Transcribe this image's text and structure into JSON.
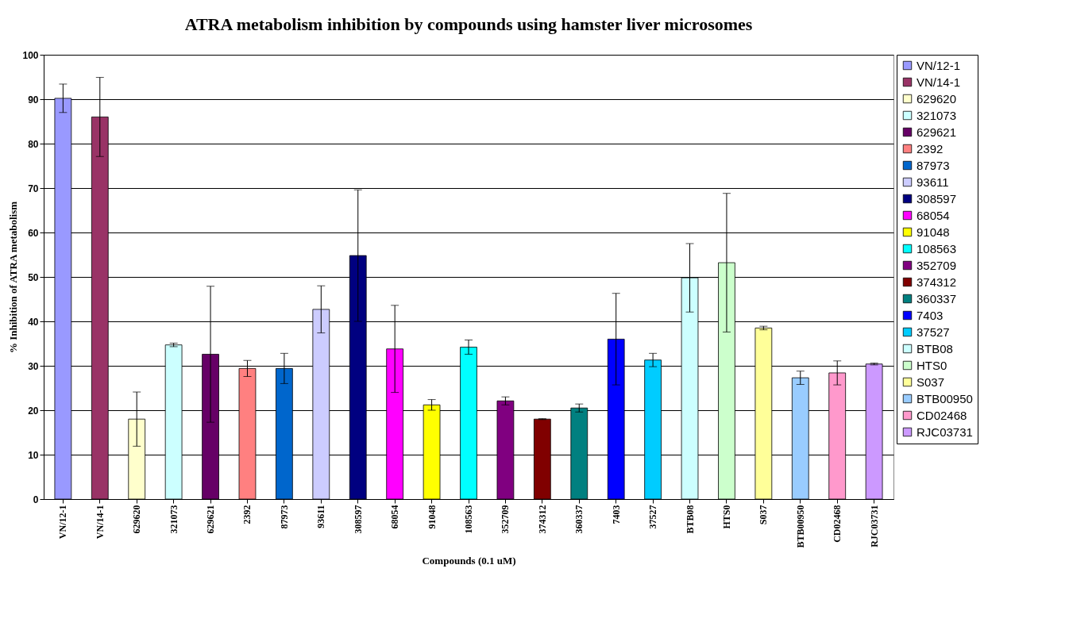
{
  "chart_data": {
    "type": "bar",
    "title": "ATRA metabolism inhibition by compounds using hamster liver microsomes",
    "xlabel": "Compounds (0.1 uM)",
    "ylabel": "% Inhibition of ATRA metabolism",
    "categories": [
      "VN/12-1",
      "VN/14-1",
      "629620",
      "321073",
      "629621",
      "2392",
      "87973",
      "93611",
      "308597",
      "68054",
      "91048",
      "108563",
      "352709",
      "374312",
      "360337",
      "7403",
      "37527",
      "BTB08",
      "HTS0",
      "S037",
      "BTB00950",
      "CD02468",
      "RJC03731"
    ],
    "series": [
      {
        "name": "VN/12-1",
        "color": "#9999ff",
        "values": [
          90.2,
          null,
          null,
          null,
          null,
          null,
          null,
          null,
          null,
          null,
          null,
          null,
          null,
          null,
          null,
          null,
          null,
          null,
          null,
          null,
          null,
          null,
          null
        ],
        "errors": [
          3.2,
          null,
          null,
          null,
          null,
          null,
          null,
          null,
          null,
          null,
          null,
          null,
          null,
          null,
          null,
          null,
          null,
          null,
          null,
          null,
          null,
          null,
          null
        ]
      },
      {
        "name": "VN/14-1",
        "color": "#993366",
        "values": [
          null,
          86,
          null,
          null,
          null,
          null,
          null,
          null,
          null,
          null,
          null,
          null,
          null,
          null,
          null,
          null,
          null,
          null,
          null,
          null,
          null,
          null,
          null
        ],
        "errors": [
          null,
          8.9,
          null,
          null,
          null,
          null,
          null,
          null,
          null,
          null,
          null,
          null,
          null,
          null,
          null,
          null,
          null,
          null,
          null,
          null,
          null,
          null,
          null
        ]
      },
      {
        "name": "629620",
        "color": "#ffffcc",
        "values": [
          null,
          null,
          18,
          null,
          null,
          null,
          null,
          null,
          null,
          null,
          null,
          null,
          null,
          null,
          null,
          null,
          null,
          null,
          null,
          null,
          null,
          null,
          null
        ],
        "errors": [
          null,
          null,
          6.1,
          null,
          null,
          null,
          null,
          null,
          null,
          null,
          null,
          null,
          null,
          null,
          null,
          null,
          null,
          null,
          null,
          null,
          null,
          null,
          null
        ]
      },
      {
        "name": "321073",
        "color": "#ccffff",
        "values": [
          null,
          null,
          null,
          34.7,
          null,
          null,
          null,
          null,
          null,
          null,
          null,
          null,
          null,
          null,
          null,
          null,
          null,
          null,
          null,
          null,
          null,
          null,
          null
        ],
        "errors": [
          null,
          null,
          null,
          0.4,
          null,
          null,
          null,
          null,
          null,
          null,
          null,
          null,
          null,
          null,
          null,
          null,
          null,
          null,
          null,
          null,
          null,
          null,
          null
        ]
      },
      {
        "name": "629621",
        "color": "#660066",
        "values": [
          null,
          null,
          null,
          null,
          32.6,
          null,
          null,
          null,
          null,
          null,
          null,
          null,
          null,
          null,
          null,
          null,
          null,
          null,
          null,
          null,
          null,
          null,
          null
        ],
        "errors": [
          null,
          null,
          null,
          null,
          15.3,
          null,
          null,
          null,
          null,
          null,
          null,
          null,
          null,
          null,
          null,
          null,
          null,
          null,
          null,
          null,
          null,
          null,
          null
        ]
      },
      {
        "name": "2392",
        "color": "#ff8080",
        "values": [
          null,
          null,
          null,
          null,
          null,
          29.4,
          null,
          null,
          null,
          null,
          null,
          null,
          null,
          null,
          null,
          null,
          null,
          null,
          null,
          null,
          null,
          null,
          null
        ],
        "errors": [
          null,
          null,
          null,
          null,
          null,
          1.8,
          null,
          null,
          null,
          null,
          null,
          null,
          null,
          null,
          null,
          null,
          null,
          null,
          null,
          null,
          null,
          null,
          null
        ]
      },
      {
        "name": "87973",
        "color": "#0066cc",
        "values": [
          null,
          null,
          null,
          null,
          null,
          null,
          29.4,
          null,
          null,
          null,
          null,
          null,
          null,
          null,
          null,
          null,
          null,
          null,
          null,
          null,
          null,
          null,
          null
        ],
        "errors": [
          null,
          null,
          null,
          null,
          null,
          null,
          3.4,
          null,
          null,
          null,
          null,
          null,
          null,
          null,
          null,
          null,
          null,
          null,
          null,
          null,
          null,
          null,
          null
        ]
      },
      {
        "name": "93611",
        "color": "#ccccff",
        "values": [
          null,
          null,
          null,
          null,
          null,
          null,
          null,
          42.7,
          null,
          null,
          null,
          null,
          null,
          null,
          null,
          null,
          null,
          null,
          null,
          null,
          null,
          null,
          null
        ],
        "errors": [
          null,
          null,
          null,
          null,
          null,
          null,
          null,
          5.3,
          null,
          null,
          null,
          null,
          null,
          null,
          null,
          null,
          null,
          null,
          null,
          null,
          null,
          null,
          null
        ]
      },
      {
        "name": "308597",
        "color": "#000080",
        "values": [
          null,
          null,
          null,
          null,
          null,
          null,
          null,
          null,
          54.8,
          null,
          null,
          null,
          null,
          null,
          null,
          null,
          null,
          null,
          null,
          null,
          null,
          null,
          null
        ],
        "errors": [
          null,
          null,
          null,
          null,
          null,
          null,
          null,
          null,
          14.8,
          null,
          null,
          null,
          null,
          null,
          null,
          null,
          null,
          null,
          null,
          null,
          null,
          null,
          null
        ]
      },
      {
        "name": "68054",
        "color": "#ff00ff",
        "values": [
          null,
          null,
          null,
          null,
          null,
          null,
          null,
          null,
          null,
          33.8,
          null,
          null,
          null,
          null,
          null,
          null,
          null,
          null,
          null,
          null,
          null,
          null,
          null
        ],
        "errors": [
          null,
          null,
          null,
          null,
          null,
          null,
          null,
          null,
          null,
          9.8,
          null,
          null,
          null,
          null,
          null,
          null,
          null,
          null,
          null,
          null,
          null,
          null,
          null
        ]
      },
      {
        "name": "91048",
        "color": "#ffff00",
        "values": [
          null,
          null,
          null,
          null,
          null,
          null,
          null,
          null,
          null,
          null,
          21.2,
          null,
          null,
          null,
          null,
          null,
          null,
          null,
          null,
          null,
          null,
          null,
          null
        ],
        "errors": [
          null,
          null,
          null,
          null,
          null,
          null,
          null,
          null,
          null,
          null,
          1.2,
          null,
          null,
          null,
          null,
          null,
          null,
          null,
          null,
          null,
          null,
          null,
          null
        ]
      },
      {
        "name": "108563",
        "color": "#00ffff",
        "values": [
          null,
          null,
          null,
          null,
          null,
          null,
          null,
          null,
          null,
          null,
          null,
          34.2,
          null,
          null,
          null,
          null,
          null,
          null,
          null,
          null,
          null,
          null,
          null
        ],
        "errors": [
          null,
          null,
          null,
          null,
          null,
          null,
          null,
          null,
          null,
          null,
          null,
          1.6,
          null,
          null,
          null,
          null,
          null,
          null,
          null,
          null,
          null,
          null,
          null
        ]
      },
      {
        "name": "352709",
        "color": "#800080",
        "values": [
          null,
          null,
          null,
          null,
          null,
          null,
          null,
          null,
          null,
          null,
          null,
          null,
          22.1,
          null,
          null,
          null,
          null,
          null,
          null,
          null,
          null,
          null,
          null
        ],
        "errors": [
          null,
          null,
          null,
          null,
          null,
          null,
          null,
          null,
          null,
          null,
          null,
          null,
          0.9,
          null,
          null,
          null,
          null,
          null,
          null,
          null,
          null,
          null,
          null
        ]
      },
      {
        "name": "374312",
        "color": "#800000",
        "values": [
          null,
          null,
          null,
          null,
          null,
          null,
          null,
          null,
          null,
          null,
          null,
          null,
          null,
          18,
          null,
          null,
          null,
          null,
          null,
          null,
          null,
          null,
          null
        ],
        "errors": [
          null,
          null,
          null,
          null,
          null,
          null,
          null,
          null,
          null,
          null,
          null,
          null,
          null,
          0.1,
          null,
          null,
          null,
          null,
          null,
          null,
          null,
          null,
          null
        ]
      },
      {
        "name": "360337",
        "color": "#008080",
        "values": [
          null,
          null,
          null,
          null,
          null,
          null,
          null,
          null,
          null,
          null,
          null,
          null,
          null,
          null,
          20.5,
          null,
          null,
          null,
          null,
          null,
          null,
          null,
          null
        ],
        "errors": [
          null,
          null,
          null,
          null,
          null,
          null,
          null,
          null,
          null,
          null,
          null,
          null,
          null,
          null,
          0.9,
          null,
          null,
          null,
          null,
          null,
          null,
          null,
          null
        ]
      },
      {
        "name": "7403",
        "color": "#0000ff",
        "values": [
          null,
          null,
          null,
          null,
          null,
          null,
          null,
          null,
          null,
          null,
          null,
          null,
          null,
          null,
          null,
          36,
          null,
          null,
          null,
          null,
          null,
          null,
          null
        ],
        "errors": [
          null,
          null,
          null,
          null,
          null,
          null,
          null,
          null,
          null,
          null,
          null,
          null,
          null,
          null,
          null,
          10.3,
          null,
          null,
          null,
          null,
          null,
          null,
          null
        ]
      },
      {
        "name": "37527",
        "color": "#00ccff",
        "values": [
          null,
          null,
          null,
          null,
          null,
          null,
          null,
          null,
          null,
          null,
          null,
          null,
          null,
          null,
          null,
          null,
          31.3,
          null,
          null,
          null,
          null,
          null,
          null
        ],
        "errors": [
          null,
          null,
          null,
          null,
          null,
          null,
          null,
          null,
          null,
          null,
          null,
          null,
          null,
          null,
          null,
          null,
          1.5,
          null,
          null,
          null,
          null,
          null,
          null
        ]
      },
      {
        "name": "BTB08",
        "color": "#ccffff",
        "values": [
          null,
          null,
          null,
          null,
          null,
          null,
          null,
          null,
          null,
          null,
          null,
          null,
          null,
          null,
          null,
          null,
          null,
          49.8,
          null,
          null,
          null,
          null,
          null
        ],
        "errors": [
          null,
          null,
          null,
          null,
          null,
          null,
          null,
          null,
          null,
          null,
          null,
          null,
          null,
          null,
          null,
          null,
          null,
          7.7,
          null,
          null,
          null,
          null,
          null
        ]
      },
      {
        "name": "HTS0",
        "color": "#ccffcc",
        "values": [
          null,
          null,
          null,
          null,
          null,
          null,
          null,
          null,
          null,
          null,
          null,
          null,
          null,
          null,
          null,
          null,
          null,
          null,
          53.2,
          null,
          null,
          null,
          null
        ],
        "errors": [
          null,
          null,
          null,
          null,
          null,
          null,
          null,
          null,
          null,
          null,
          null,
          null,
          null,
          null,
          null,
          null,
          null,
          null,
          15.6,
          null,
          null,
          null,
          null
        ]
      },
      {
        "name": "S037",
        "color": "#ffff99",
        "values": [
          null,
          null,
          null,
          null,
          null,
          null,
          null,
          null,
          null,
          null,
          null,
          null,
          null,
          null,
          null,
          null,
          null,
          null,
          null,
          38.5,
          null,
          null,
          null
        ],
        "errors": [
          null,
          null,
          null,
          null,
          null,
          null,
          null,
          null,
          null,
          null,
          null,
          null,
          null,
          null,
          null,
          null,
          null,
          null,
          null,
          0.4,
          null,
          null,
          null
        ]
      },
      {
        "name": "BTB00950",
        "color": "#99ccff",
        "values": [
          null,
          null,
          null,
          null,
          null,
          null,
          null,
          null,
          null,
          null,
          null,
          null,
          null,
          null,
          null,
          null,
          null,
          null,
          null,
          null,
          27.3,
          null,
          null
        ],
        "errors": [
          null,
          null,
          null,
          null,
          null,
          null,
          null,
          null,
          null,
          null,
          null,
          null,
          null,
          null,
          null,
          null,
          null,
          null,
          null,
          null,
          1.5,
          null,
          null
        ]
      },
      {
        "name": "CD02468",
        "color": "#ff99cc",
        "values": [
          null,
          null,
          null,
          null,
          null,
          null,
          null,
          null,
          null,
          null,
          null,
          null,
          null,
          null,
          null,
          null,
          null,
          null,
          null,
          null,
          null,
          28.4,
          null
        ],
        "errors": [
          null,
          null,
          null,
          null,
          null,
          null,
          null,
          null,
          null,
          null,
          null,
          null,
          null,
          null,
          null,
          null,
          null,
          null,
          null,
          null,
          null,
          2.7,
          null
        ]
      },
      {
        "name": "RJC03731",
        "color": "#cc99ff",
        "values": [
          null,
          null,
          null,
          null,
          null,
          null,
          null,
          null,
          null,
          null,
          null,
          null,
          null,
          null,
          null,
          null,
          null,
          null,
          null,
          null,
          null,
          null,
          30.4
        ],
        "errors": [
          null,
          null,
          null,
          null,
          null,
          null,
          null,
          null,
          null,
          null,
          null,
          null,
          null,
          null,
          null,
          null,
          null,
          null,
          null,
          null,
          null,
          null,
          0.2
        ]
      }
    ],
    "ylim": [
      0,
      100
    ],
    "yticks": [
      0,
      10,
      20,
      30,
      40,
      50,
      60,
      70,
      80,
      90,
      100
    ],
    "grid": "y",
    "legend": "right"
  }
}
